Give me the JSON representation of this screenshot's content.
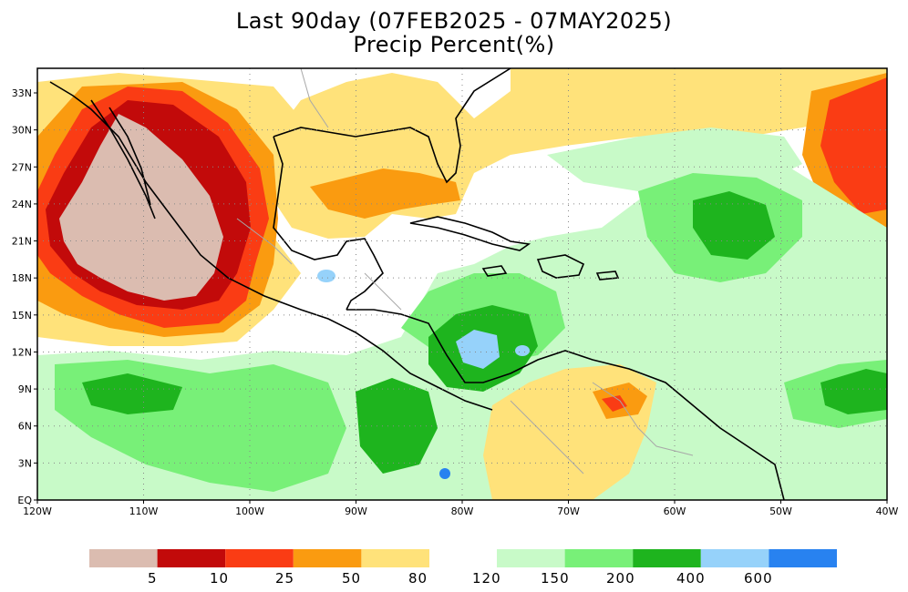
{
  "title": {
    "line1": "Last 90day (07FEB2025 - 07MAY2025)",
    "line2": "Precip Percent(%)"
  },
  "axes": {
    "lat_labels": [
      "33N",
      "30N",
      "27N",
      "24N",
      "21N",
      "18N",
      "15N",
      "12N",
      "9N",
      "6N",
      "3N",
      "EQ"
    ],
    "lon_labels": [
      "120W",
      "110W",
      "100W",
      "90W",
      "80W",
      "70W",
      "60W",
      "50W",
      "40W"
    ]
  },
  "legend": {
    "left_bins": [
      {
        "color": "#dbbcb0"
      },
      {
        "color": "#c20a0a"
      },
      {
        "color": "#fa3c14"
      },
      {
        "color": "#fa9b10"
      },
      {
        "color": "#ffe27a"
      }
    ],
    "left_labels": [
      "5",
      "10",
      "25",
      "50",
      "80"
    ],
    "right_bins": [
      {
        "color": "#c8fac8"
      },
      {
        "color": "#78f078"
      },
      {
        "color": "#1eb41e"
      },
      {
        "color": "#96d2fa"
      },
      {
        "color": "#2882f0"
      }
    ],
    "right_labels": [
      "120",
      "150",
      "200",
      "400",
      "600"
    ]
  },
  "map_colors": {
    "very_dry": "#dbbcb0",
    "dry10": "#c20a0a",
    "dry25": "#fa3c14",
    "dry50": "#fa9b10",
    "dry80": "#ffe27a",
    "wet120": "#c8fac8",
    "wet150": "#78f078",
    "wet200": "#1eb41e",
    "wet400": "#96d2fa",
    "wet600": "#2882f0"
  }
}
